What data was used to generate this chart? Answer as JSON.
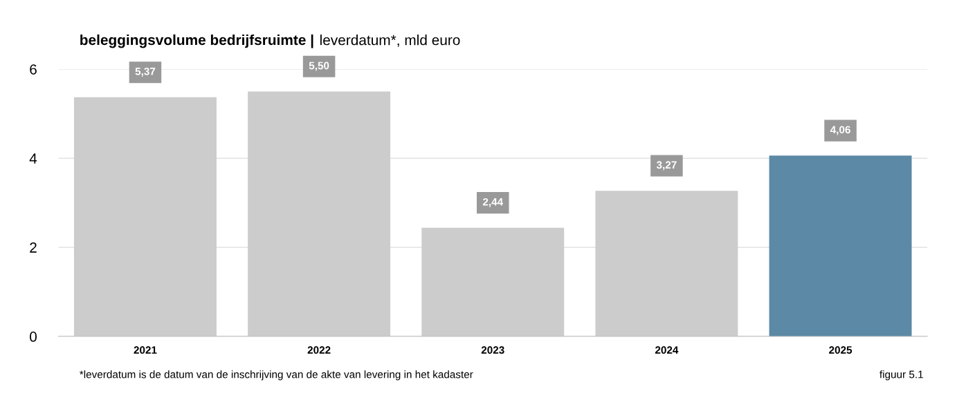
{
  "chart_data": {
    "type": "bar",
    "title": "beleggingsvolume bedrijfsruimte |",
    "subtitle": "leverdatum*, mld euro",
    "categories": [
      "2021",
      "2022",
      "2023",
      "2024",
      "2025"
    ],
    "values": [
      5.37,
      5.5,
      2.44,
      3.27,
      4.06
    ],
    "colors": [
      "#cccccc",
      "#cccccc",
      "#cccccc",
      "#cccccc",
      "#5b89a6"
    ],
    "value_labels": [
      "5,37",
      "5,50",
      "2,44",
      "3,27",
      "4,06"
    ],
    "ylim": [
      0,
      6
    ],
    "yticks": [
      0,
      2,
      4,
      6
    ],
    "grid": "y",
    "annotations": [
      "*leverdatum is de datum van de inschrijving van de akte van levering in het kadaster",
      "figuur 5.1"
    ]
  }
}
